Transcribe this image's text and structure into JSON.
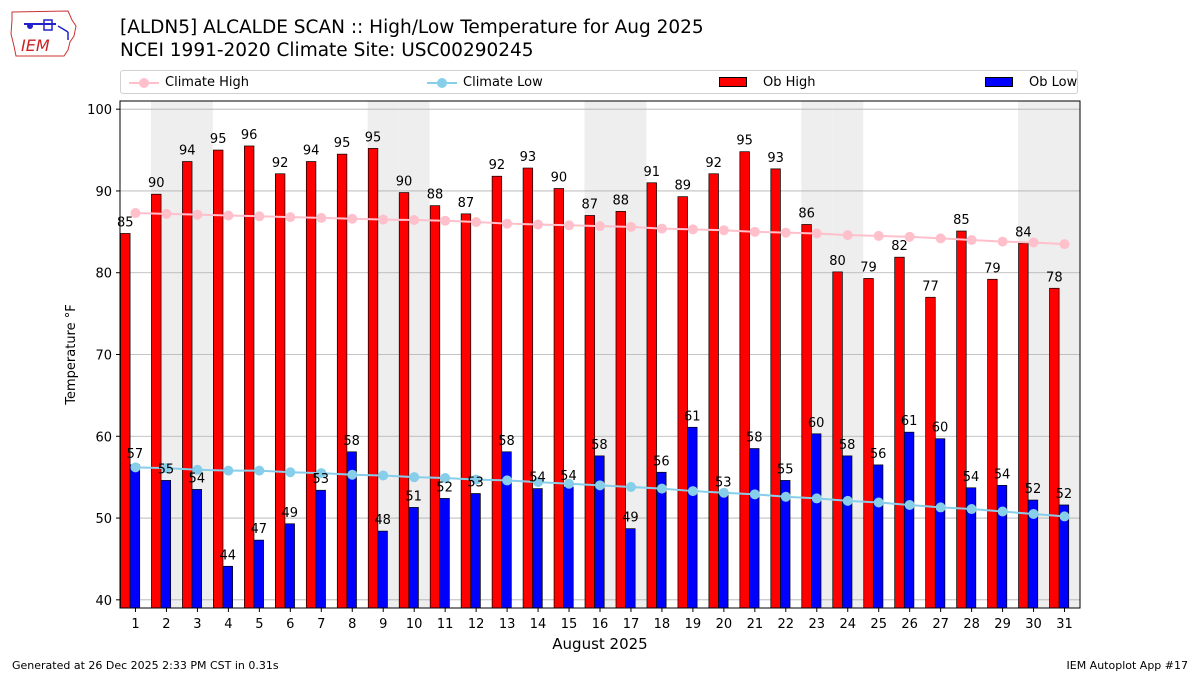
{
  "logo": {
    "text": "IEM"
  },
  "header": {
    "title_line1": "[ALDN5] ALCALDE SCAN :: High/Low Temperature for Aug 2025",
    "title_line2": "NCEI 1991-2020 Climate Site: USC00290245"
  },
  "legend": {
    "climate_high": "Climate High",
    "climate_low": "Climate Low",
    "ob_high": "Ob High",
    "ob_low": "Ob Low"
  },
  "colors": {
    "ob_high": "#ff0000",
    "ob_low": "#0000ff",
    "climate_high": "#ffc0cb",
    "climate_low": "#87ceeb",
    "weekend_band": "#eeeeee",
    "grid": "#b0b0b0"
  },
  "chart_data": {
    "type": "bar",
    "xlabel": "August 2025",
    "ylabel": "Temperature °F",
    "ylim": [
      39,
      101
    ],
    "yticks": [
      40,
      50,
      60,
      70,
      80,
      90,
      100
    ],
    "grid": "horizontal",
    "legend_position": "top",
    "categories": [
      "1",
      "2",
      "3",
      "4",
      "5",
      "6",
      "7",
      "8",
      "9",
      "10",
      "11",
      "12",
      "13",
      "14",
      "15",
      "16",
      "17",
      "18",
      "19",
      "20",
      "21",
      "22",
      "23",
      "24",
      "25",
      "26",
      "27",
      "28",
      "29",
      "30",
      "31"
    ],
    "weekend_days": [
      2,
      3,
      9,
      10,
      16,
      17,
      23,
      24,
      30,
      31
    ],
    "series": [
      {
        "name": "Ob High",
        "kind": "bar",
        "values": [
          84.8,
          89.6,
          93.6,
          95.0,
          95.5,
          92.1,
          93.6,
          94.5,
          95.2,
          89.8,
          88.2,
          87.2,
          91.8,
          92.8,
          90.3,
          87.0,
          87.5,
          91.0,
          89.3,
          92.1,
          94.8,
          92.7,
          85.9,
          80.1,
          79.3,
          81.9,
          77.0,
          85.1,
          79.2,
          83.6,
          78.1
        ],
        "labels": [
          "85",
          "90",
          "94",
          "95",
          "96",
          "92",
          "94",
          "95",
          "95",
          "90",
          "88",
          "87",
          "92",
          "93",
          "90",
          "87",
          "88",
          "91",
          "89",
          "92",
          "95",
          "93",
          "86",
          "80",
          "79",
          "82",
          "77",
          "85",
          "79",
          "84",
          "78"
        ]
      },
      {
        "name": "Ob Low",
        "kind": "bar",
        "values": [
          56.5,
          54.6,
          53.5,
          44.1,
          47.3,
          49.3,
          53.4,
          58.1,
          48.4,
          51.3,
          52.4,
          53.0,
          58.1,
          53.6,
          53.8,
          57.6,
          48.7,
          55.6,
          61.1,
          53.0,
          58.5,
          54.6,
          60.3,
          57.6,
          56.5,
          60.5,
          59.7,
          53.7,
          54.0,
          52.2,
          51.6
        ],
        "labels": [
          "57",
          "55",
          "54",
          "44",
          "47",
          "49",
          "53",
          "58",
          "48",
          "51",
          "52",
          "53",
          "58",
          "54",
          "54",
          "58",
          "49",
          "56",
          "61",
          "53",
          "58",
          "55",
          "60",
          "58",
          "56",
          "61",
          "60",
          "54",
          "54",
          "52",
          "52"
        ]
      },
      {
        "name": "Climate High",
        "kind": "line",
        "values": [
          87.3,
          87.2,
          87.1,
          87.0,
          86.9,
          86.8,
          86.7,
          86.6,
          86.5,
          86.45,
          86.35,
          86.2,
          86.0,
          85.9,
          85.8,
          85.7,
          85.6,
          85.4,
          85.3,
          85.2,
          85.0,
          84.9,
          84.8,
          84.6,
          84.5,
          84.4,
          84.2,
          84.0,
          83.8,
          83.7,
          83.5
        ]
      },
      {
        "name": "Climate Low",
        "kind": "line",
        "values": [
          56.2,
          56.1,
          55.9,
          55.8,
          55.8,
          55.6,
          55.5,
          55.3,
          55.2,
          55.0,
          54.9,
          54.7,
          54.6,
          54.4,
          54.2,
          54.0,
          53.8,
          53.6,
          53.3,
          53.1,
          52.9,
          52.6,
          52.4,
          52.1,
          51.9,
          51.6,
          51.3,
          51.1,
          50.8,
          50.5,
          50.2
        ]
      }
    ]
  },
  "footer": {
    "generated": "Generated at 26 Dec 2025 2:33 PM CST in 0.31s",
    "app": "IEM Autoplot App #17"
  }
}
